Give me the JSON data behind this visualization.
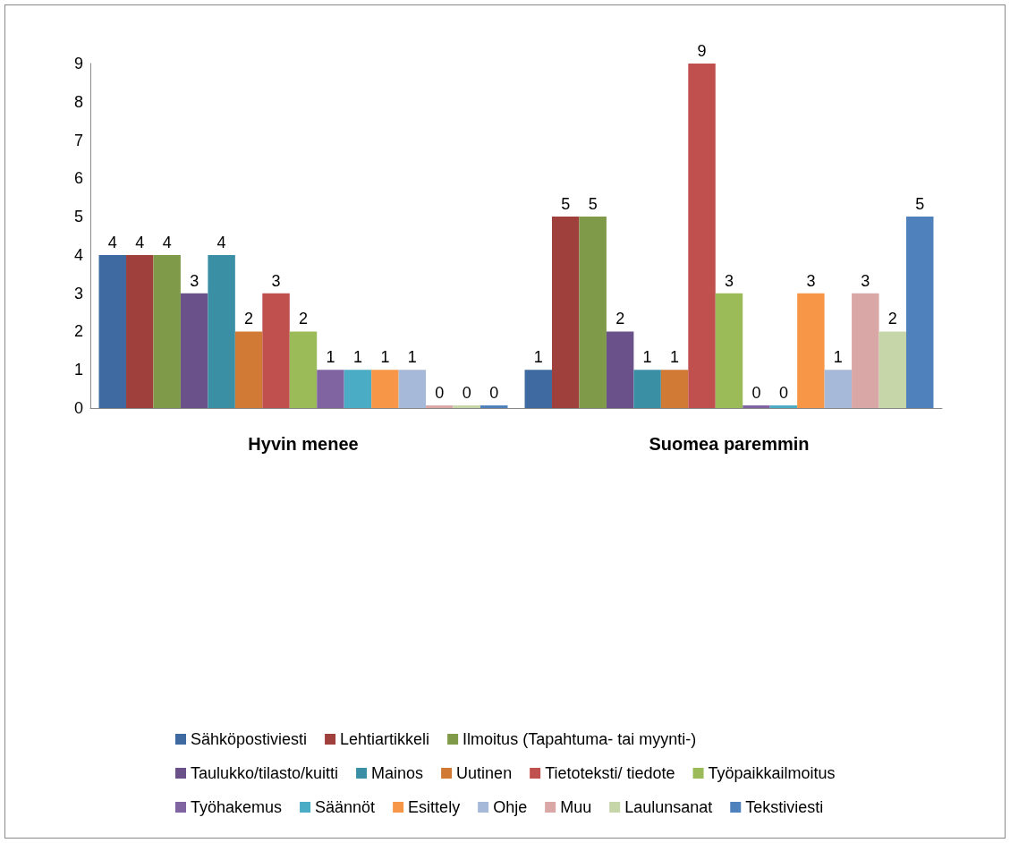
{
  "chart_data": {
    "type": "bar",
    "categories": [
      "Hyvin menee",
      "Suomea paremmin"
    ],
    "ylim": [
      0,
      9
    ],
    "yticks": [
      0,
      1,
      2,
      3,
      4,
      5,
      6,
      7,
      8,
      9
    ],
    "grid": false,
    "legend": "bottom",
    "data_labels": true,
    "series": [
      {
        "name": "Sähköpostiviesti",
        "color": "#3e6aa1",
        "values": [
          4,
          1
        ]
      },
      {
        "name": "Lehtiartikkeli",
        "color": "#a0403d",
        "values": [
          4,
          5
        ]
      },
      {
        "name": "Ilmoitus (Tapahtuma- tai myynti-)",
        "color": "#7f9a48",
        "values": [
          4,
          5
        ]
      },
      {
        "name": "Taulukko/tilasto/kuitti",
        "color": "#6a5189",
        "values": [
          3,
          2
        ]
      },
      {
        "name": "Mainos",
        "color": "#3a8fa5",
        "values": [
          4,
          1
        ]
      },
      {
        "name": "Uutinen",
        "color": "#d07a36",
        "values": [
          2,
          1
        ]
      },
      {
        "name": "Tietoteksti/ tiedote",
        "color": "#c0504d",
        "values": [
          3,
          9
        ]
      },
      {
        "name": "Työpaikkailmoitus",
        "color": "#9bbb59",
        "values": [
          2,
          3
        ]
      },
      {
        "name": "Työhakemus",
        "color": "#8064a2",
        "values": [
          1,
          0
        ]
      },
      {
        "name": "Säännöt",
        "color": "#4bacc6",
        "values": [
          1,
          0
        ]
      },
      {
        "name": "Esittely",
        "color": "#f79646",
        "values": [
          1,
          3
        ]
      },
      {
        "name": "Ohje",
        "color": "#a7b9d9",
        "values": [
          1,
          1
        ]
      },
      {
        "name": "Muu",
        "color": "#d9a7a6",
        "values": [
          0,
          3
        ]
      },
      {
        "name": "Laulunsanat",
        "color": "#c6d6a8",
        "values": [
          0,
          2
        ]
      },
      {
        "name": "Tekstiviesti",
        "color": "#4f81bd",
        "values": [
          0,
          5
        ]
      }
    ]
  }
}
